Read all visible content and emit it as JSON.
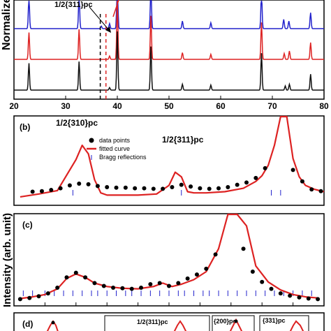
{
  "chart_data": [
    {
      "panel": "a",
      "type": "line",
      "ylabel": "Normalized",
      "xlim": [
        20,
        80
      ],
      "x_ticks": [
        "20",
        "30",
        "40",
        "50",
        "60",
        "70",
        "80"
      ],
      "annotation": "1/2{311}pc",
      "marker_lines_x": [
        36.7,
        37.8
      ],
      "series": [
        {
          "color": "#2222cc",
          "offset": 2.0,
          "peaks": [
            {
              "x": 22.9,
              "h": 1.9
            },
            {
              "x": 32.6,
              "h": 2.0
            },
            {
              "x": 36.9,
              "h": 0.15
            },
            {
              "x": 38.5,
              "h": 0.3
            },
            {
              "x": 40.0,
              "h": 3.5
            },
            {
              "x": 46.5,
              "h": 2.6
            },
            {
              "x": 52.6,
              "h": 0.45
            },
            {
              "x": 58.1,
              "h": 0.35
            },
            {
              "x": 67.9,
              "h": 2.2
            },
            {
              "x": 72.2,
              "h": 0.55
            },
            {
              "x": 73.2,
              "h": 0.45
            },
            {
              "x": 77.4,
              "h": 0.95
            }
          ]
        },
        {
          "color": "#dd2222",
          "offset": 1.0,
          "peaks": [
            {
              "x": 22.9,
              "h": 1.6
            },
            {
              "x": 32.6,
              "h": 1.8
            },
            {
              "x": 38.5,
              "h": 0.2
            },
            {
              "x": 40.0,
              "h": 3.5
            },
            {
              "x": 46.5,
              "h": 2.6
            },
            {
              "x": 52.6,
              "h": 0.4
            },
            {
              "x": 58.1,
              "h": 0.3
            },
            {
              "x": 67.9,
              "h": 2.2
            },
            {
              "x": 72.3,
              "h": 0.35
            },
            {
              "x": 73.3,
              "h": 0.5
            },
            {
              "x": 77.4,
              "h": 1.0
            }
          ]
        },
        {
          "color": "#111111",
          "offset": 0.0,
          "peaks": [
            {
              "x": 22.9,
              "h": 1.6
            },
            {
              "x": 32.6,
              "h": 1.7
            },
            {
              "x": 38.5,
              "h": 0.15
            },
            {
              "x": 40.0,
              "h": 3.5
            },
            {
              "x": 46.5,
              "h": 2.6
            },
            {
              "x": 52.6,
              "h": 0.35
            },
            {
              "x": 58.1,
              "h": 0.3
            },
            {
              "x": 67.9,
              "h": 2.2
            },
            {
              "x": 72.5,
              "h": 0.25
            },
            {
              "x": 73.3,
              "h": 0.35
            },
            {
              "x": 77.4,
              "h": 0.95
            }
          ]
        }
      ]
    },
    {
      "panel": "b",
      "type": "scatter",
      "label": "(b)",
      "annotations": [
        "1/2{310}pc",
        "1/2{311}pc"
      ],
      "legend": {
        "position": "top-left",
        "entries": [
          "data points",
          "fitted curve",
          "Bragg reflections"
        ]
      },
      "data_x": [
        0.06,
        0.09,
        0.12,
        0.15,
        0.18,
        0.21,
        0.24,
        0.27,
        0.3,
        0.33,
        0.36,
        0.39,
        0.42,
        0.45,
        0.48,
        0.51,
        0.54,
        0.57,
        0.6,
        0.63,
        0.66,
        0.69,
        0.72,
        0.75,
        0.78,
        0.81,
        0.84,
        0.87,
        0.9,
        0.93,
        0.96,
        0.99
      ],
      "data_y": [
        0.14,
        0.15,
        0.17,
        0.2,
        0.25,
        0.28,
        0.27,
        0.24,
        0.22,
        0.21,
        0.21,
        0.2,
        0.2,
        0.19,
        0.19,
        0.22,
        0.26,
        0.23,
        0.2,
        0.19,
        0.2,
        0.22,
        0.26,
        0.3,
        0.38,
        0.55,
        1.6,
        2.2,
        0.52,
        0.32,
        0.18,
        0.15
      ],
      "fit_x": [
        0.02,
        0.08,
        0.14,
        0.2,
        0.22,
        0.24,
        0.26,
        0.28,
        0.3,
        0.34,
        0.4,
        0.46,
        0.5,
        0.52,
        0.54,
        0.56,
        0.58,
        0.62,
        0.68,
        0.74,
        0.78,
        0.8,
        0.82,
        0.84,
        0.86,
        0.88,
        0.9,
        0.92,
        0.94,
        0.97,
        1.0
      ],
      "fit_y": [
        0.05,
        0.1,
        0.16,
        0.7,
        0.95,
        0.8,
        0.35,
        0.12,
        0.08,
        0.08,
        0.08,
        0.1,
        0.25,
        0.48,
        0.4,
        0.14,
        0.12,
        0.12,
        0.14,
        0.2,
        0.32,
        0.42,
        0.6,
        0.95,
        2.2,
        2.2,
        0.72,
        0.4,
        0.25,
        0.18,
        0.14
      ],
      "bragg_x": [
        0.19,
        0.54,
        0.83,
        0.86
      ]
    },
    {
      "panel": "c",
      "type": "scatter",
      "label": "(c)",
      "ylabel": "Intensity (arb. unit)",
      "data_x": [
        0.02,
        0.05,
        0.08,
        0.11,
        0.14,
        0.17,
        0.2,
        0.23,
        0.26,
        0.29,
        0.32,
        0.35,
        0.38,
        0.41,
        0.44,
        0.47,
        0.5,
        0.53,
        0.56,
        0.59,
        0.62,
        0.65,
        0.68,
        0.71,
        0.74,
        0.77,
        0.8,
        0.83,
        0.86,
        0.89,
        0.92,
        0.95,
        0.98
      ],
      "data_y": [
        0.02,
        0.04,
        0.07,
        0.12,
        0.22,
        0.4,
        0.48,
        0.4,
        0.3,
        0.25,
        0.22,
        0.21,
        0.2,
        0.22,
        0.28,
        0.3,
        0.25,
        0.3,
        0.38,
        0.45,
        0.55,
        0.8,
        1.5,
        2.2,
        0.9,
        0.5,
        0.32,
        0.2,
        0.12,
        0.08,
        0.05,
        0.03,
        0.02
      ],
      "fit_x": [
        0.02,
        0.06,
        0.1,
        0.14,
        0.17,
        0.2,
        0.23,
        0.26,
        0.3,
        0.35,
        0.4,
        0.45,
        0.48,
        0.51,
        0.54,
        0.58,
        0.62,
        0.66,
        0.69,
        0.72,
        0.75,
        0.78,
        0.82,
        0.86,
        0.9,
        0.94,
        0.98
      ],
      "fit_y": [
        0.03,
        0.06,
        0.1,
        0.2,
        0.38,
        0.46,
        0.4,
        0.3,
        0.24,
        0.21,
        0.2,
        0.24,
        0.3,
        0.24,
        0.28,
        0.36,
        0.5,
        0.9,
        1.8,
        2.2,
        1.3,
        0.6,
        0.32,
        0.18,
        0.1,
        0.06,
        0.04
      ],
      "bragg_x": [
        0.03,
        0.06,
        0.1,
        0.13,
        0.16,
        0.19,
        0.22,
        0.25,
        0.27,
        0.3,
        0.33,
        0.36,
        0.38,
        0.41,
        0.44,
        0.47,
        0.5,
        0.53,
        0.55,
        0.58,
        0.61,
        0.63,
        0.66,
        0.69,
        0.72,
        0.75,
        0.78,
        0.81,
        0.84,
        0.87,
        0.9,
        0.93,
        0.96
      ]
    },
    {
      "panel": "d",
      "type": "scatter",
      "label": "(d)",
      "insets": [
        "1/2{311}pc",
        "{200}pc",
        "{331}pc"
      ]
    }
  ]
}
